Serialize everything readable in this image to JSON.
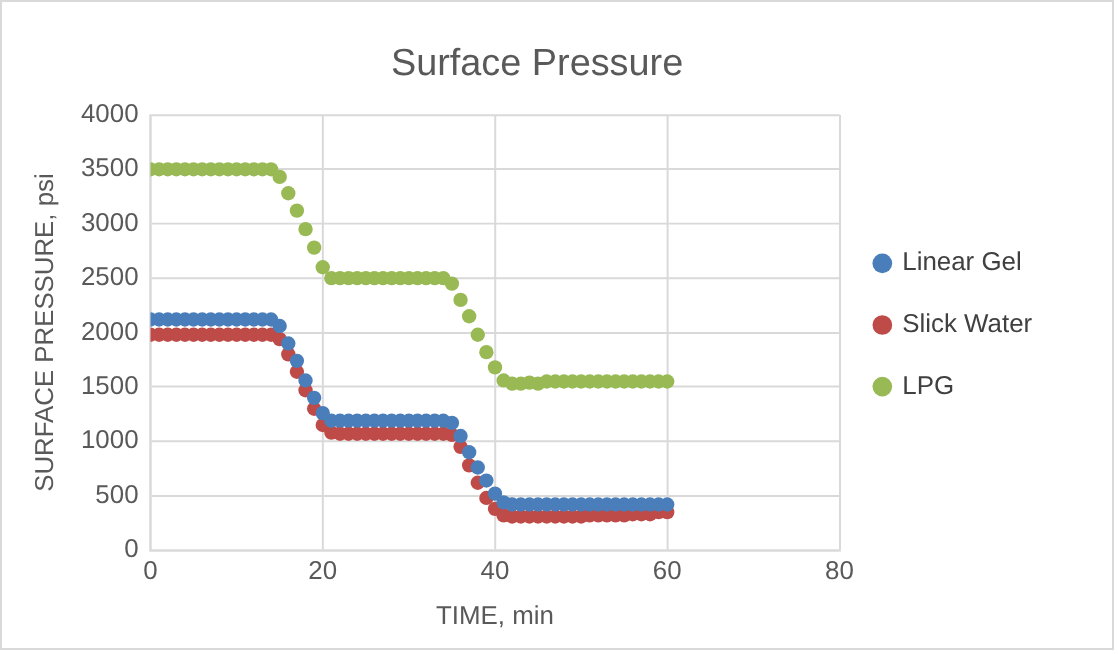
{
  "chart_data": {
    "type": "scatter",
    "title": "Surface Pressure",
    "xlabel": "TIME, min",
    "ylabel": "SURFACE PRESSURE, psi",
    "x": [
      0,
      1,
      2,
      3,
      4,
      5,
      6,
      7,
      8,
      9,
      10,
      11,
      12,
      13,
      14,
      15,
      16,
      17,
      18,
      19,
      20,
      21,
      22,
      23,
      24,
      25,
      26,
      27,
      28,
      29,
      30,
      31,
      32,
      33,
      34,
      35,
      36,
      37,
      38,
      39,
      40,
      41,
      42,
      43,
      44,
      45,
      46,
      47,
      48,
      49,
      50,
      51,
      52,
      53,
      54,
      55,
      56,
      57,
      58,
      59,
      60
    ],
    "series": [
      {
        "name": "Linear Gel",
        "color": "#4a7ebb",
        "values": [
          2120,
          2120,
          2120,
          2120,
          2120,
          2120,
          2120,
          2120,
          2120,
          2120,
          2120,
          2120,
          2120,
          2120,
          2120,
          2060,
          1900,
          1740,
          1560,
          1400,
          1260,
          1190,
          1190,
          1190,
          1190,
          1190,
          1190,
          1190,
          1190,
          1190,
          1190,
          1190,
          1190,
          1190,
          1190,
          1170,
          1050,
          900,
          760,
          640,
          520,
          440,
          420,
          420,
          420,
          420,
          420,
          420,
          420,
          420,
          420,
          420,
          420,
          420,
          420,
          420,
          420,
          420,
          420,
          420,
          420
        ]
      },
      {
        "name": "Slick Water",
        "color": "#be4b48",
        "values": [
          1980,
          1980,
          1980,
          1980,
          1980,
          1980,
          1980,
          1980,
          1980,
          1980,
          1980,
          1980,
          1980,
          1980,
          1980,
          1940,
          1800,
          1640,
          1470,
          1300,
          1150,
          1080,
          1070,
          1070,
          1070,
          1070,
          1070,
          1070,
          1070,
          1070,
          1070,
          1070,
          1070,
          1070,
          1070,
          1060,
          950,
          780,
          620,
          480,
          380,
          320,
          310,
          310,
          310,
          310,
          310,
          310,
          310,
          310,
          310,
          320,
          320,
          320,
          320,
          320,
          330,
          330,
          330,
          350,
          350
        ]
      },
      {
        "name": "LPG",
        "color": "#98b954",
        "values": [
          3500,
          3500,
          3500,
          3500,
          3500,
          3500,
          3500,
          3500,
          3500,
          3500,
          3500,
          3500,
          3500,
          3500,
          3500,
          3430,
          3280,
          3120,
          2950,
          2780,
          2600,
          2500,
          2500,
          2500,
          2500,
          2500,
          2500,
          2500,
          2500,
          2500,
          2500,
          2500,
          2500,
          2500,
          2500,
          2450,
          2300,
          2150,
          1980,
          1820,
          1680,
          1560,
          1530,
          1530,
          1540,
          1530,
          1550,
          1550,
          1550,
          1550,
          1550,
          1550,
          1550,
          1550,
          1550,
          1550,
          1550,
          1550,
          1550,
          1550,
          1550
        ]
      }
    ],
    "xlim": [
      0,
      80
    ],
    "xticks": [
      0,
      20,
      40,
      60,
      80
    ],
    "ylim": [
      0,
      4000
    ],
    "yticks": [
      0,
      500,
      1000,
      1500,
      2000,
      2500,
      3000,
      3500,
      4000
    ],
    "grid": true,
    "legend": "right",
    "marker": "circle"
  }
}
